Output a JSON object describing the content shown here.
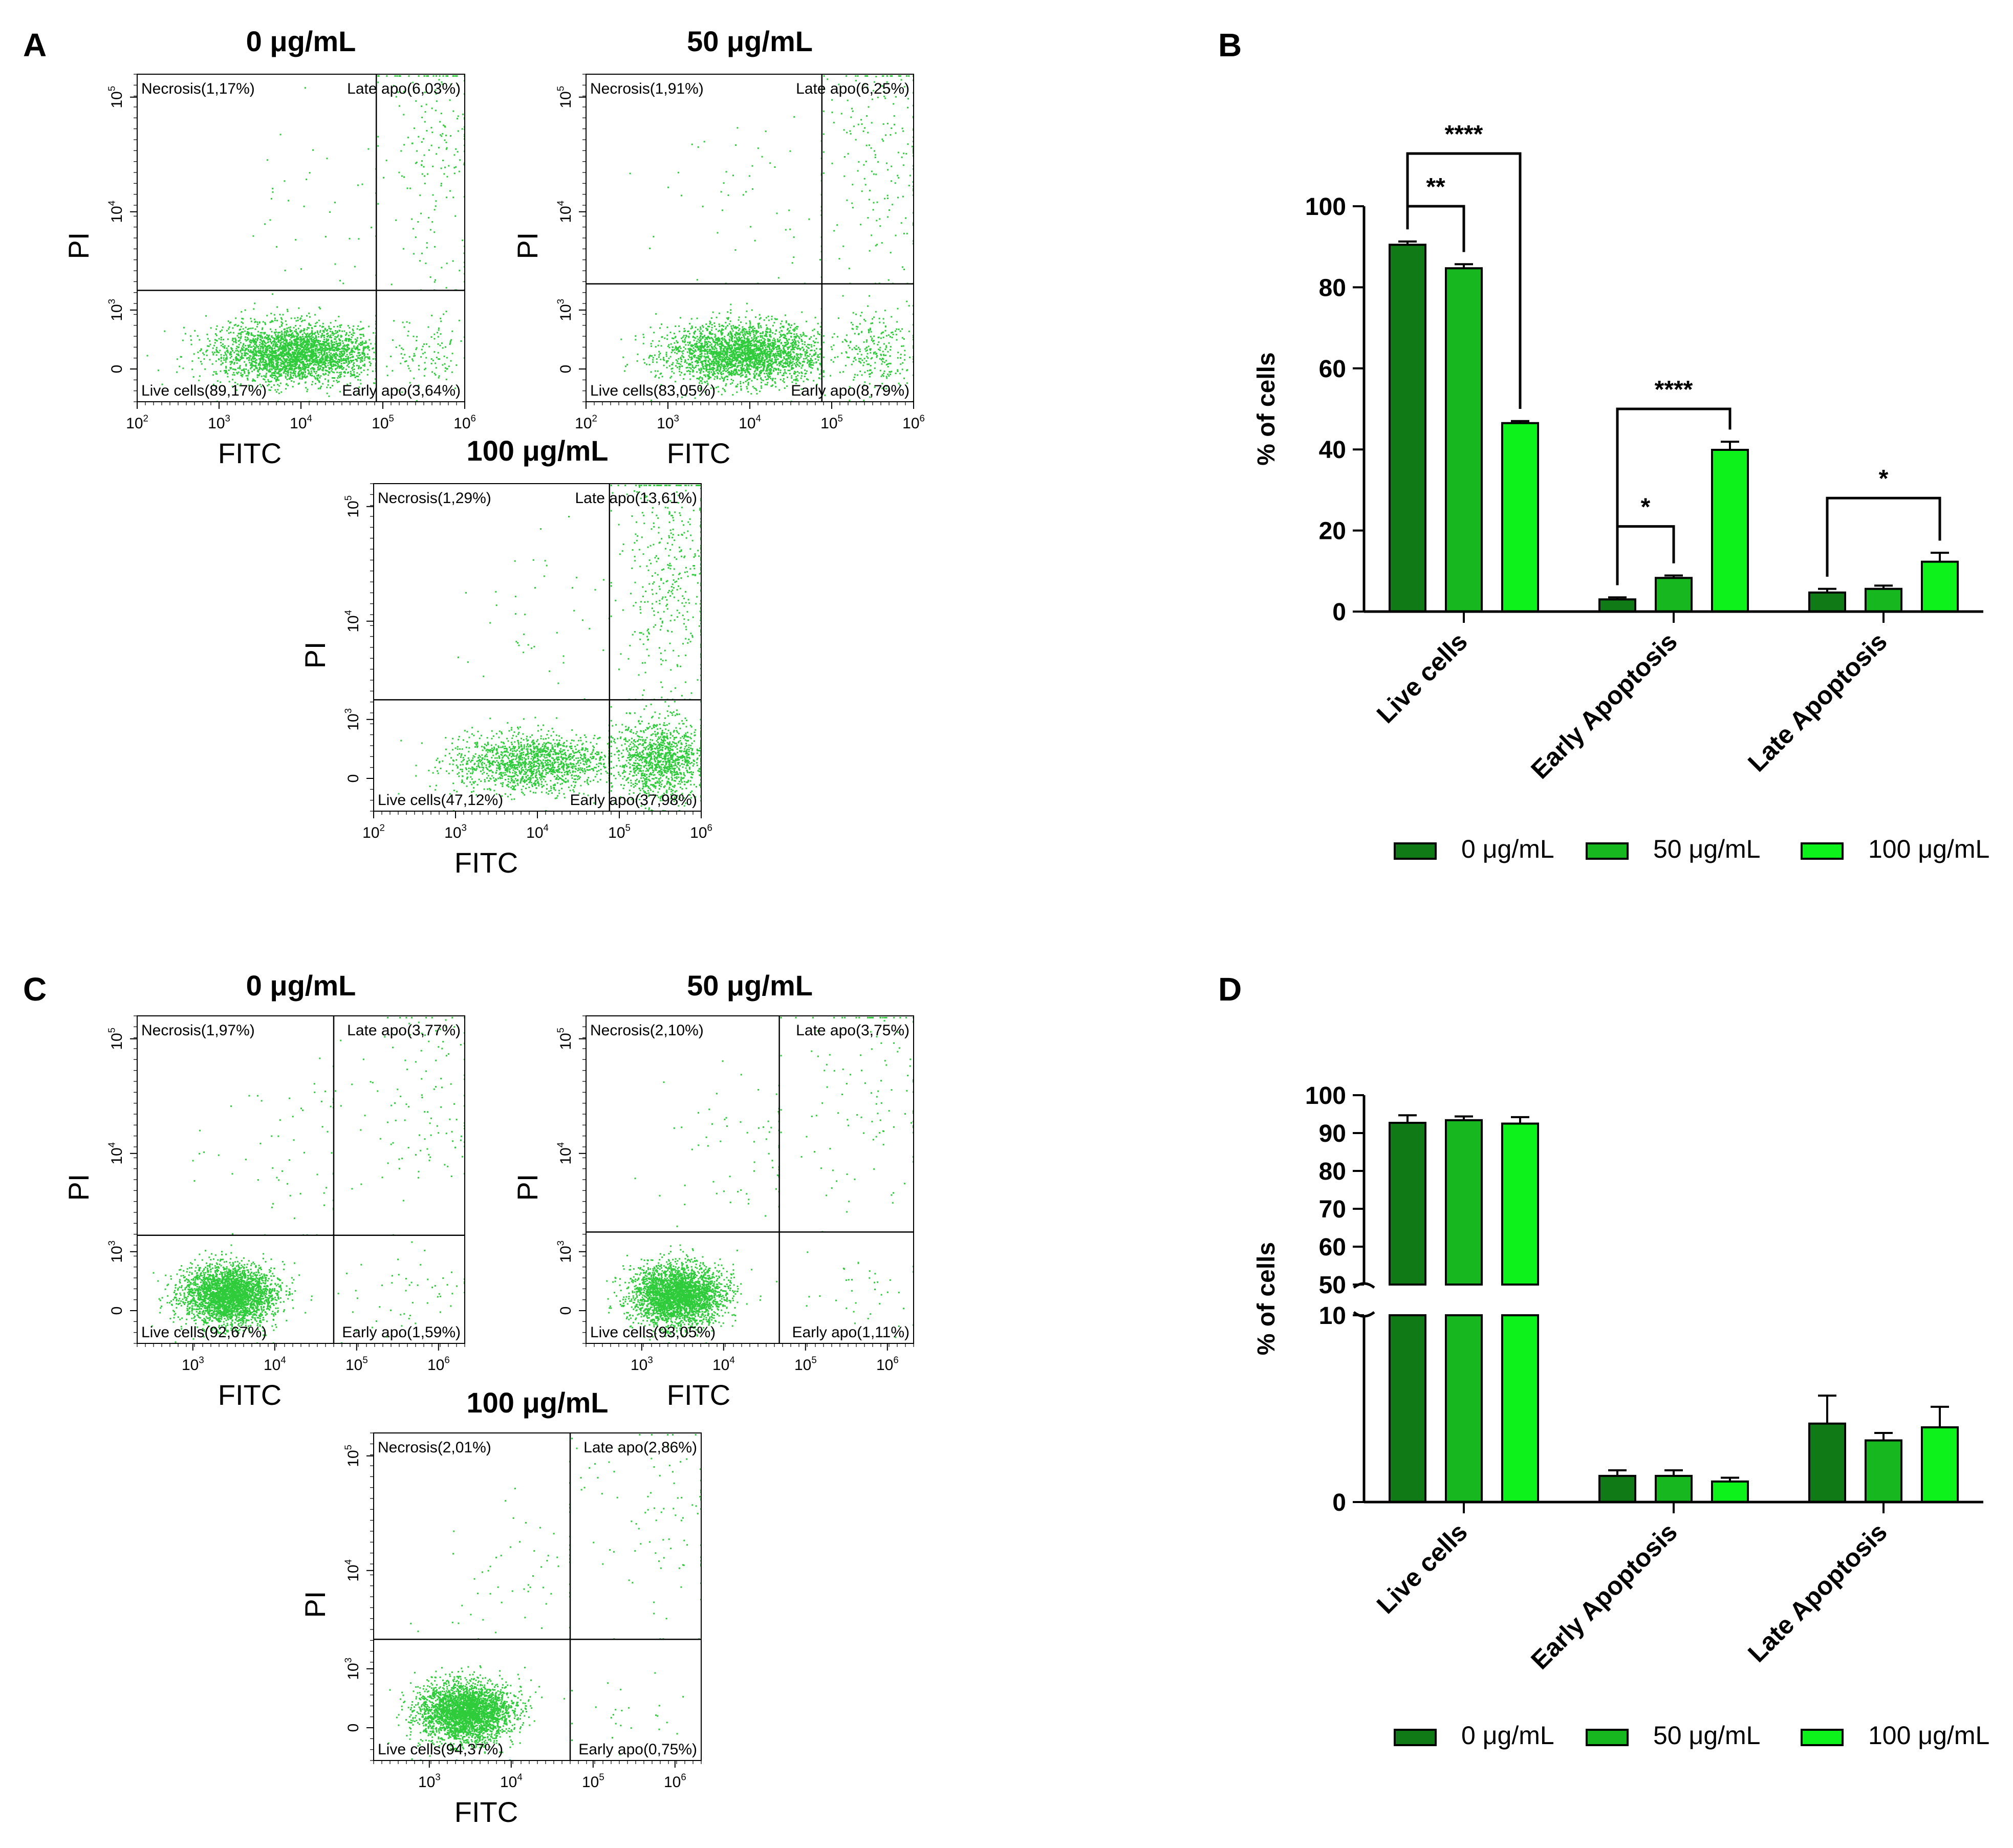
{
  "panel_letters": [
    "A",
    "B",
    "C",
    "D"
  ],
  "colors": {
    "c0": "#0f7a16",
    "c50": "#17b81f",
    "c100": "#0cf21a",
    "dots": "#2ecc3a",
    "axis": "#000000"
  },
  "flow_axes": {
    "x_label": "FITC",
    "y_label": "PI",
    "x_ticks_AB": [
      "10",
      "10",
      "10",
      "10",
      "10"
    ],
    "x_ticks_AB_exp": [
      "2",
      "3",
      "4",
      "5",
      "6"
    ],
    "x_ticks_CD": [
      "10",
      "10",
      "10",
      "10"
    ],
    "x_ticks_CD_exp": [
      "3",
      "4",
      "5",
      "6"
    ],
    "y_ticks": [
      "0",
      "10",
      "10",
      "10"
    ],
    "y_ticks_exp": [
      "",
      "3",
      "4",
      "5"
    ]
  },
  "flow_plots": [
    {
      "panel": "A",
      "title": "0 μg/mL",
      "necrosis": "Necrosis(1,17%)",
      "late": "Late apo(6,03%)",
      "live": "Live cells(89,17%)",
      "early": "Early apo(3,64%)",
      "live_pct": 89.17,
      "early_pct": 3.64,
      "late_pct": 6.03,
      "necrosis_pct": 1.17
    },
    {
      "panel": "A",
      "title": "50 μg/mL",
      "necrosis": "Necrosis(1,91%)",
      "late": "Late apo(6,25%)",
      "live": "Live cells(83,05%)",
      "early": "Early apo(8,79%)",
      "live_pct": 83.05,
      "early_pct": 8.79,
      "late_pct": 6.25,
      "necrosis_pct": 1.91
    },
    {
      "panel": "A",
      "title": "100 μg/mL",
      "necrosis": "Necrosis(1,29%)",
      "late": "Late apo(13,61%)",
      "live": "Live cells(47,12%)",
      "early": "Early apo(37,98%)",
      "live_pct": 47.12,
      "early_pct": 37.98,
      "late_pct": 13.61,
      "necrosis_pct": 1.29
    },
    {
      "panel": "C",
      "title": "0 μg/mL",
      "necrosis": "Necrosis(1,97%)",
      "late": "Late apo(3,77%)",
      "live": "Live cells(92,67%)",
      "early": "Early apo(1,59%)",
      "live_pct": 92.67,
      "early_pct": 1.59,
      "late_pct": 3.77,
      "necrosis_pct": 1.97
    },
    {
      "panel": "C",
      "title": "50 μg/mL",
      "necrosis": "Necrosis(2,10%)",
      "late": "Late apo(3,75%)",
      "live": "Live cells(93,05%)",
      "early": "Early apo(1,11%)",
      "live_pct": 93.05,
      "early_pct": 1.11,
      "late_pct": 3.75,
      "necrosis_pct": 2.1
    },
    {
      "panel": "C",
      "title": "100 μg/mL",
      "necrosis": "Necrosis(2,01%)",
      "late": "Late apo(2,86%)",
      "live": "Live cells(94,37%)",
      "early": "Early apo(0,75%)",
      "live_pct": 94.37,
      "early_pct": 0.75,
      "late_pct": 2.86,
      "necrosis_pct": 2.01
    }
  ],
  "chart_data": [
    {
      "panel": "B",
      "type": "bar",
      "ylabel": "% of cells",
      "ylim": [
        0,
        100
      ],
      "yticks": [
        0,
        20,
        40,
        60,
        80,
        100
      ],
      "categories": [
        "Live cells",
        "Early Apoptosis",
        "Late Apoptosis"
      ],
      "series": [
        {
          "name": "0 μg/mL",
          "values": [
            90.5,
            3.0,
            4.7
          ],
          "errors": [
            0.8,
            0.5,
            0.9
          ]
        },
        {
          "name": "50 μg/mL",
          "values": [
            84.7,
            8.3,
            5.6
          ],
          "errors": [
            1.0,
            0.6,
            0.8
          ]
        },
        {
          "name": "100 μg/mL",
          "values": [
            46.5,
            39.9,
            12.3
          ],
          "errors": [
            0.5,
            2.0,
            2.2
          ]
        }
      ],
      "legend": "bottom",
      "significance": [
        {
          "category": 0,
          "from": 0,
          "to": 1,
          "y": 100,
          "label": "**"
        },
        {
          "category": 0,
          "from": 0,
          "to": 2,
          "y": 113,
          "label": "****"
        },
        {
          "category": 1,
          "from": 0,
          "to": 1,
          "y": 21,
          "label": "*"
        },
        {
          "category": 1,
          "from": 0,
          "to": 2,
          "y": 50,
          "label": "****"
        },
        {
          "category": 2,
          "from": 0,
          "to": 2,
          "y": 28,
          "label": "*"
        }
      ]
    },
    {
      "panel": "D",
      "type": "bar",
      "ylabel": "% of cells",
      "axis_break": true,
      "ylim_lower": [
        0,
        10
      ],
      "ylim_upper": [
        50,
        100
      ],
      "yticks_lower": [
        0,
        10
      ],
      "yticks_upper": [
        50,
        60,
        70,
        80,
        90,
        100
      ],
      "categories": [
        "Live cells",
        "Early Apoptosis",
        "Late Apoptosis"
      ],
      "series": [
        {
          "name": "0 μg/mL",
          "values": [
            92.7,
            1.4,
            4.2
          ],
          "errors": [
            2.0,
            0.3,
            1.5
          ]
        },
        {
          "name": "50 μg/mL",
          "values": [
            93.4,
            1.4,
            3.3
          ],
          "errors": [
            1.0,
            0.3,
            0.4
          ]
        },
        {
          "name": "100 μg/mL",
          "values": [
            92.5,
            1.1,
            4.0
          ],
          "errors": [
            1.7,
            0.2,
            1.1
          ]
        }
      ],
      "legend": "bottom"
    }
  ]
}
